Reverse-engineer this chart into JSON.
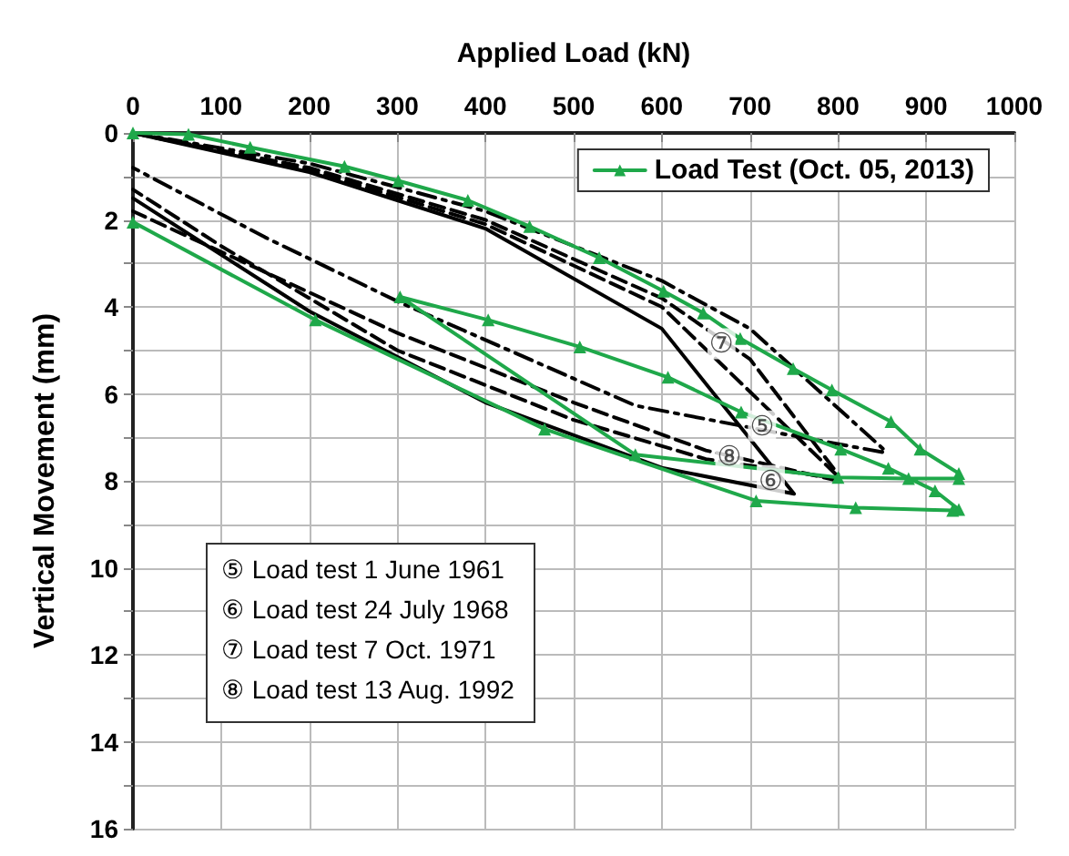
{
  "chart_data": {
    "type": "line",
    "xlabel": "Applied Load (kN)",
    "ylabel": "Vertical Movement (mm)",
    "xlim": [
      0,
      1000
    ],
    "xticks": [
      0,
      100,
      200,
      300,
      400,
      500,
      600,
      700,
      800,
      900,
      1000
    ],
    "ylim": [
      16,
      0
    ],
    "yticks": [
      0,
      {
        "value": 1,
        "label": null
      },
      2,
      {
        "value": 3,
        "label": null
      },
      4,
      {
        "value": 5,
        "label": null
      },
      6,
      {
        "value": 7,
        "label": null
      },
      8,
      {
        "value": 9,
        "label": null
      },
      10,
      {
        "value": 11,
        "label": null
      },
      12,
      {
        "value": 13,
        "label": null
      },
      14,
      {
        "value": 15,
        "label": null
      },
      16
    ],
    "grid": true,
    "legend": "top right",
    "series": [
      {
        "name": "Load Test (Oct. 05, 2013)",
        "color": "#1fa84a",
        "marker": "triangle",
        "line_style": "solid",
        "x": [
          0,
          63,
          133,
          240,
          301,
          380,
          450,
          529,
          602,
          647,
          689,
          749,
          793,
          860,
          893,
          937,
          937,
          880,
          800,
          570,
          303,
          403,
          507,
          607,
          690,
          803,
          857,
          910,
          937,
          930,
          820,
          707,
          467,
          207,
          0
        ],
        "values": [
          0,
          0.03,
          0.33,
          0.77,
          1.1,
          1.55,
          2.15,
          2.87,
          3.64,
          4.14,
          4.73,
          5.42,
          5.91,
          6.64,
          7.27,
          7.83,
          7.95,
          7.95,
          7.92,
          7.4,
          3.77,
          4.3,
          4.92,
          5.62,
          6.42,
          7.27,
          7.71,
          8.23,
          8.66,
          8.68,
          8.62,
          8.46,
          6.81,
          4.3,
          2.05
        ]
      },
      {
        "color": "#000000",
        "marker": "none",
        "line_style": "dashed",
        "x": [
          0,
          200,
          400,
          600,
          700,
          800,
          800,
          650,
          500,
          300,
          100,
          0
        ],
        "values": [
          0,
          0.8,
          2.0,
          3.8,
          5.2,
          7.85,
          7.95,
          7.5,
          6.6,
          5.0,
          2.6,
          1.3
        ]
      },
      {
        "color": "#000000",
        "marker": "none",
        "line_style": "solid",
        "x": [
          0,
          200,
          400,
          600,
          750,
          750,
          600,
          400,
          200,
          0
        ],
        "values": [
          0,
          0.9,
          2.2,
          4.5,
          8.3,
          8.3,
          7.7,
          6.2,
          4.1,
          1.5
        ]
      },
      {
        "color": "#000000",
        "marker": "none",
        "line_style": "dashdot",
        "x": [
          0,
          200,
          400,
          600,
          700,
          853,
          853,
          743,
          570,
          303,
          150,
          0
        ],
        "values": [
          0,
          0.7,
          1.8,
          3.4,
          4.5,
          7.3,
          7.35,
          6.94,
          6.27,
          3.9,
          2.4,
          0.8
        ]
      },
      {
        "color": "#000000",
        "marker": "none",
        "line_style": "dashed",
        "x": [
          0,
          200,
          400,
          600,
          800,
          800,
          650,
          500,
          300,
          0
        ],
        "values": [
          0,
          0.85,
          2.1,
          4.0,
          7.9,
          8.0,
          7.3,
          6.2,
          4.6,
          1.8
        ]
      }
    ],
    "annotations": [
      "⑤ Load test 1 June 1961",
      "⑥ Load test 24 July 1968",
      "⑦ Load test 7 Oct. 1971",
      "⑧ Load test 13 Aug. 1992",
      {
        "text": "⑦",
        "x": 647,
        "y": 4.72
      },
      {
        "text": "⑤",
        "x": 693,
        "y": 6.61
      },
      {
        "text": "⑧",
        "x": 656,
        "y": 7.3
      },
      {
        "text": "⑥",
        "x": 703,
        "y": 7.87
      }
    ]
  }
}
